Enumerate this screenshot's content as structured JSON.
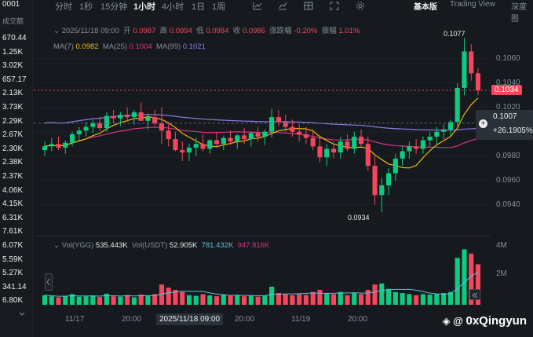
{
  "toolbar": {
    "timeframes": [
      "分时",
      "1秒",
      "15分钟",
      "1小时",
      "4小时",
      "1日",
      "1周"
    ],
    "active_timeframe": "1小时",
    "views": [
      "基本版",
      "Trading View",
      "深度图"
    ],
    "active_view": "基本版"
  },
  "left_list": {
    "pair": "0001",
    "header": "成交额",
    "values": [
      "670.44",
      "1.25K",
      "3.02K",
      "657.17",
      "2.13K",
      "3.73K",
      "2.29K",
      "2.67K",
      "2.30K",
      "2.38K",
      "2.37K",
      "4.06K",
      "4.15K",
      "6.31K",
      "7.61K",
      "6.07K",
      "5.59K",
      "5.27K",
      "341.14",
      "6.80K"
    ]
  },
  "ohlc": {
    "time": "2025/11/18 09:00",
    "open_label": "开",
    "open": "0.0987",
    "high_label": "高",
    "high": "0.0994",
    "low_label": "低",
    "low": "0.0984",
    "close_label": "收",
    "close": "0.0986",
    "change_label": "涨跌幅",
    "change": "-0.20%",
    "amp_label": "振幅",
    "amp": "1.01%"
  },
  "ma": {
    "ma7_label": "MA(7)",
    "ma7": "0.0982",
    "ma25_label": "MA(25)",
    "ma25": "0.1004",
    "ma99_label": "MA(99)",
    "ma99": "0.1021"
  },
  "volume_legend": {
    "label1": "Vol(YGG)",
    "val1": "535.443K",
    "label2": "Vol(USDT)",
    "val2": "52.905K",
    "val3": "781.432K",
    "val4": "947.816K"
  },
  "price_axis": [
    "0.1060",
    "0.1040",
    "0.1020",
    "0.1000",
    "0.0980",
    "0.0960",
    "0.0940"
  ],
  "price_ticks": [
    0.106,
    0.104,
    0.102,
    0.1,
    0.098,
    0.096,
    0.094
  ],
  "current_price": "0.1034",
  "crosshair_price": "0.1007",
  "crosshair_pct": "+26.1905%",
  "high_marker": "0.1077",
  "low_marker": "0.0934",
  "volume_axis": [
    "4M",
    "2M"
  ],
  "time_axis": [
    "11/17",
    "20:00",
    "2025/11/18 09:00",
    "20:00",
    "11/19",
    "20:00"
  ],
  "watermark": "0xQingyun",
  "colors": {
    "up": "#0ecb81",
    "down": "#f6465d",
    "ma7": "#f0b90b",
    "ma25": "#d63384",
    "ma99": "#8c7ae6",
    "bg": "#161a1e"
  },
  "chart_data": {
    "type": "candlestick",
    "ylim": [
      0.0925,
      0.1085
    ],
    "candles": [
      [
        0.0985,
        0.0992,
        0.098,
        0.0988
      ],
      [
        0.0988,
        0.0995,
        0.0984,
        0.099
      ],
      [
        0.099,
        0.0996,
        0.0985,
        0.0987
      ],
      [
        0.0987,
        0.0993,
        0.0982,
        0.0991
      ],
      [
        0.0991,
        0.1,
        0.0988,
        0.0998
      ],
      [
        0.0998,
        0.1004,
        0.0993,
        0.1001
      ],
      [
        0.1001,
        0.1008,
        0.0996,
        0.1004
      ],
      [
        0.1004,
        0.101,
        0.0999,
        0.1007
      ],
      [
        0.1007,
        0.1012,
        0.1001,
        0.1003
      ],
      [
        0.1003,
        0.1016,
        0.1,
        0.1013
      ],
      [
        0.1013,
        0.1018,
        0.1007,
        0.1011
      ],
      [
        0.1011,
        0.1016,
        0.1005,
        0.1014
      ],
      [
        0.1014,
        0.102,
        0.1008,
        0.1012
      ],
      [
        0.1012,
        0.1018,
        0.1006,
        0.1016
      ],
      [
        0.1016,
        0.1024,
        0.101,
        0.1009
      ],
      [
        0.1009,
        0.1015,
        0.1002,
        0.1012
      ],
      [
        0.1012,
        0.1018,
        0.1005,
        0.1007
      ],
      [
        0.1007,
        0.102,
        0.099,
        0.1001
      ],
      [
        0.1001,
        0.1008,
        0.0988,
        0.0994
      ],
      [
        0.0994,
        0.1,
        0.0984,
        0.0985
      ],
      [
        0.0985,
        0.0992,
        0.0976,
        0.0983
      ],
      [
        0.0983,
        0.099,
        0.0976,
        0.0987
      ],
      [
        0.0987,
        0.0995,
        0.098,
        0.099
      ],
      [
        0.099,
        0.0998,
        0.0984,
        0.0986
      ],
      [
        0.0986,
        0.0994,
        0.0982,
        0.0993
      ],
      [
        0.0993,
        0.1,
        0.0987,
        0.099
      ],
      [
        0.099,
        0.0997,
        0.0985,
        0.0995
      ],
      [
        0.0995,
        0.1001,
        0.0989,
        0.0992
      ],
      [
        0.0992,
        0.0998,
        0.0986,
        0.0997
      ],
      [
        0.0997,
        0.1003,
        0.099,
        0.0994
      ],
      [
        0.0994,
        0.1,
        0.0988,
        0.0999
      ],
      [
        0.0999,
        0.1004,
        0.0992,
        0.0996
      ],
      [
        0.0996,
        0.1002,
        0.0989,
        0.1
      ],
      [
        0.1,
        0.1019,
        0.0995,
        0.1012
      ],
      [
        0.1012,
        0.1018,
        0.1004,
        0.1008
      ],
      [
        0.1008,
        0.1014,
        0.1,
        0.1004
      ],
      [
        0.1004,
        0.101,
        0.0996,
        0.1
      ],
      [
        0.1,
        0.1006,
        0.0992,
        0.0998
      ],
      [
        0.0998,
        0.1004,
        0.099,
        0.0995
      ],
      [
        0.0995,
        0.1002,
        0.0985,
        0.0988
      ],
      [
        0.0988,
        0.0995,
        0.0975,
        0.0979
      ],
      [
        0.0979,
        0.099,
        0.0972,
        0.0986
      ],
      [
        0.0986,
        0.0992,
        0.0978,
        0.0983
      ],
      [
        0.0983,
        0.0996,
        0.0978,
        0.0992
      ],
      [
        0.0992,
        0.0998,
        0.0984,
        0.0986
      ],
      [
        0.0986,
        0.1,
        0.0982,
        0.0996
      ],
      [
        0.0996,
        0.1002,
        0.0988,
        0.099
      ],
      [
        0.099,
        0.0996,
        0.0968,
        0.0972
      ],
      [
        0.0972,
        0.098,
        0.094,
        0.0948
      ],
      [
        0.0948,
        0.0962,
        0.0934,
        0.0956
      ],
      [
        0.0956,
        0.097,
        0.0948,
        0.0966
      ],
      [
        0.0966,
        0.0982,
        0.096,
        0.0978
      ],
      [
        0.0978,
        0.0988,
        0.0972,
        0.0984
      ],
      [
        0.0984,
        0.0992,
        0.0978,
        0.0988
      ],
      [
        0.0988,
        0.0994,
        0.0982,
        0.0986
      ],
      [
        0.0986,
        0.0996,
        0.0982,
        0.0993
      ],
      [
        0.0993,
        0.1,
        0.0988,
        0.0996
      ],
      [
        0.0996,
        0.1004,
        0.099,
        0.1
      ],
      [
        0.1,
        0.1006,
        0.0994,
        0.1002
      ],
      [
        0.1002,
        0.101,
        0.0997,
        0.1008
      ],
      [
        0.1008,
        0.104,
        0.1004,
        0.1036
      ],
      [
        0.1036,
        0.1077,
        0.103,
        0.1066
      ],
      [
        0.1066,
        0.1072,
        0.1042,
        0.1048
      ],
      [
        0.1048,
        0.1052,
        0.103,
        0.1034
      ]
    ],
    "volumes": [
      0.45,
      0.4,
      0.35,
      0.42,
      0.5,
      0.38,
      0.4,
      0.44,
      0.36,
      0.52,
      0.4,
      0.38,
      0.46,
      0.35,
      0.48,
      0.42,
      0.5,
      0.95,
      0.8,
      0.7,
      0.6,
      0.45,
      0.42,
      0.5,
      0.44,
      0.4,
      0.48,
      0.42,
      0.46,
      0.4,
      0.44,
      0.38,
      0.42,
      0.85,
      0.55,
      0.5,
      0.45,
      0.5,
      0.46,
      0.6,
      0.7,
      0.55,
      0.5,
      0.6,
      0.45,
      0.55,
      0.5,
      0.7,
      0.95,
      1.0,
      0.75,
      0.6,
      0.55,
      0.5,
      0.45,
      0.5,
      0.48,
      0.5,
      0.55,
      0.6,
      2.2,
      2.6,
      2.4,
      1.9
    ]
  }
}
